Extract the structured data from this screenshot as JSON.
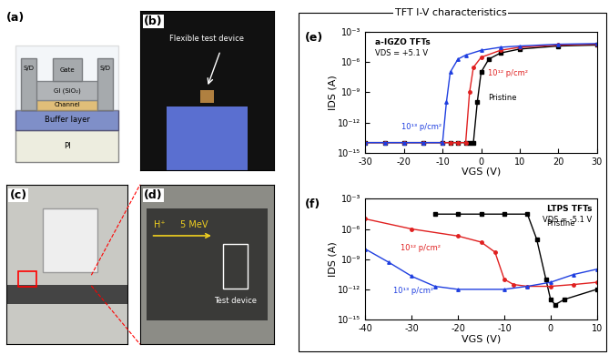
{
  "figure_title": "TFT I-V characteristics",
  "panels": {
    "a": {
      "label": "(a)",
      "source_drain": [
        "S/D",
        "S/D"
      ],
      "gate": "Gate",
      "insulator": "GI (SiO₂)",
      "channel": "Channel",
      "buffer": "Buffer layer",
      "substrate": "PI"
    },
    "b": {
      "label": "(b)",
      "annotation": "Flexible test device"
    },
    "c": {
      "label": "(c)"
    },
    "d": {
      "label": "(d)",
      "beam": "H⁺",
      "energy": "5 MeV",
      "target": "Test device"
    }
  },
  "chart_data": [
    {
      "type": "line",
      "panel": "(e)",
      "title": "a-IGZO TFTs",
      "annotation": "VDS = +5.1 V",
      "x_label": "VGS (V)",
      "y_label": "IDS (A)",
      "log": "y",
      "xlim": [
        -30,
        30
      ],
      "xticks": [
        -30,
        -20,
        -10,
        0,
        10,
        20,
        30
      ],
      "ylim": [
        1e-15,
        0.001
      ],
      "yticks": [
        {
          "value": 1e-15,
          "label": "10⁻¹⁵"
        },
        {
          "value": 1e-12,
          "label": "10⁻¹²"
        },
        {
          "value": 1e-09,
          "label": "10⁻⁹"
        },
        {
          "value": 1e-06,
          "label": "10⁻⁶"
        },
        {
          "value": 0.001,
          "label": "10⁻³"
        }
      ],
      "series": [
        {
          "name": "Pristine",
          "color": "#000000",
          "marker": "square",
          "x": [
            -30,
            -25,
            -20,
            -15,
            -10,
            -8,
            -6,
            -4,
            -3,
            -2,
            -1,
            0,
            2,
            5,
            10,
            20,
            30
          ],
          "values": [
            1e-14,
            1e-14,
            1e-14,
            1e-14,
            1e-14,
            1e-14,
            1e-14,
            1e-14,
            1e-14,
            1e-14,
            1e-10,
            1e-07,
            2e-06,
            8e-06,
            2e-05,
            4e-05,
            5e-05
          ]
        },
        {
          "name": "10¹² p/cm²",
          "color": "#e02020",
          "marker": "circle",
          "x": [
            -30,
            -25,
            -20,
            -15,
            -10,
            -8,
            -6,
            -4,
            -3,
            -2,
            0,
            5,
            10,
            20,
            30
          ],
          "values": [
            1e-14,
            1e-14,
            1e-14,
            1e-14,
            1e-14,
            1e-14,
            1e-14,
            1e-14,
            1e-09,
            3e-07,
            3e-06,
            1.5e-05,
            3e-05,
            5e-05,
            6e-05
          ]
        },
        {
          "name": "10¹³ p/cm²",
          "color": "#1f3fe0",
          "marker": "triangle",
          "x": [
            -30,
            -25,
            -20,
            -15,
            -10,
            -9,
            -8,
            -6,
            -4,
            0,
            5,
            10,
            20,
            30
          ],
          "values": [
            1e-14,
            1e-14,
            1e-14,
            1e-14,
            1e-14,
            1e-10,
            1e-07,
            2e-06,
            5e-06,
            1.5e-05,
            3e-05,
            4e-05,
            6e-05,
            7e-05
          ]
        }
      ]
    },
    {
      "type": "line",
      "panel": "(f)",
      "title": "LTPS TFTs",
      "annotation": "VDS = -5.1 V",
      "x_label": "VGS (V)",
      "y_label": "IDS (A)",
      "log": "y",
      "xlim": [
        -40,
        10
      ],
      "xticks": [
        -40,
        -30,
        -20,
        -10,
        0,
        10
      ],
      "ylim": [
        1e-15,
        0.001
      ],
      "yticks": [
        {
          "value": 1e-15,
          "label": "10⁻¹⁵"
        },
        {
          "value": 1e-12,
          "label": "10⁻¹²"
        },
        {
          "value": 1e-09,
          "label": "10⁻⁹"
        },
        {
          "value": 1e-06,
          "label": "10⁻⁶"
        },
        {
          "value": 0.001,
          "label": "10⁻³"
        }
      ],
      "series": [
        {
          "name": "Pristine",
          "color": "#000000",
          "marker": "square",
          "x": [
            -25,
            -20,
            -15,
            -10,
            -5,
            -3,
            -1,
            0,
            1,
            3,
            10
          ],
          "values": [
            3e-05,
            3e-05,
            3e-05,
            3e-05,
            3e-05,
            1e-07,
            1e-11,
            1e-13,
            3e-14,
            1e-13,
            1e-12
          ]
        },
        {
          "name": "10¹² p/cm²",
          "color": "#e02020",
          "marker": "circle",
          "x": [
            -40,
            -30,
            -20,
            -15,
            -12,
            -10,
            -8,
            -5,
            0,
            5,
            10
          ],
          "values": [
            1e-05,
            1e-06,
            2e-07,
            5e-08,
            5e-09,
            1e-11,
            3e-12,
            2e-12,
            2e-12,
            3e-12,
            5e-12
          ]
        },
        {
          "name": "10¹³ p/cm²",
          "color": "#1f3fe0",
          "marker": "triangle",
          "x": [
            -40,
            -35,
            -30,
            -25,
            -20,
            -10,
            -5,
            0,
            5,
            10
          ],
          "values": [
            1e-08,
            5e-10,
            2e-11,
            2e-12,
            1e-12,
            1e-12,
            2e-12,
            5e-12,
            3e-11,
            1e-10
          ]
        }
      ]
    }
  ]
}
